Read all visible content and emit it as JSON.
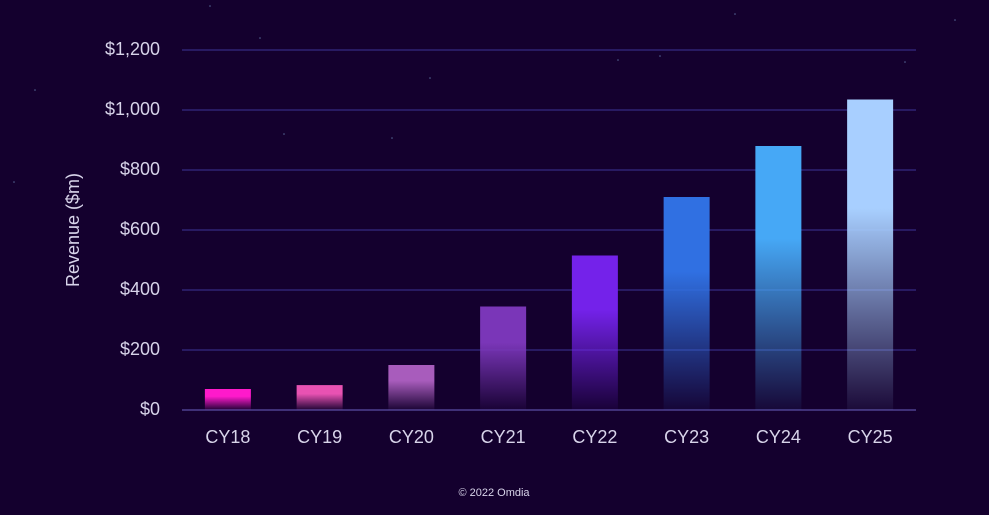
{
  "chart_data": {
    "type": "bar",
    "y_label": "Revenue ($m)",
    "source": "© 2022 Omdia",
    "categories": [
      "CY18",
      "CY19",
      "CY20",
      "CY21",
      "CY22",
      "CY23",
      "CY24",
      "CY25"
    ],
    "values": [
      70,
      83,
      150,
      345,
      515,
      710,
      880,
      1035
    ],
    "colors": [
      "#ff1acb",
      "#e852b2",
      "#a85cbc",
      "#7a36b8",
      "#7422ea",
      "#3070e2",
      "#46a8f6",
      "#a8cfff"
    ],
    "ylim": [
      0,
      1200
    ],
    "yticks": [
      {
        "value": 0,
        "label": "$0"
      },
      {
        "value": 200,
        "label": "$200"
      },
      {
        "value": 400,
        "label": "$400"
      },
      {
        "value": 600,
        "label": "$600"
      },
      {
        "value": 800,
        "label": "$800"
      },
      {
        "value": 1000,
        "label": "$1,000"
      },
      {
        "value": 1200,
        "label": "$1,200"
      }
    ],
    "grid": true
  }
}
